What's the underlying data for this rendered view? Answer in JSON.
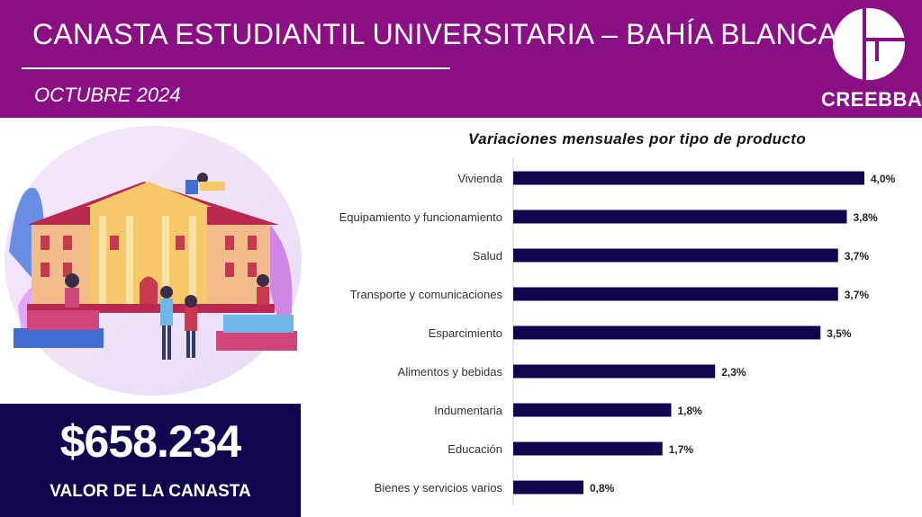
{
  "header": {
    "title": "CANASTA ESTUDIANTIL UNIVERSITARIA – BAHÍA BLANCA",
    "subtitle": "OCTUBRE 2024",
    "logo_text": "CREEBBA"
  },
  "summary": {
    "value": "$658.234",
    "label": "VALOR DE LA CANASTA"
  },
  "colors": {
    "header_bg": "#8b0f84",
    "bar": "#10054f",
    "price_box": "#10054f"
  },
  "chart_data": {
    "type": "bar",
    "orientation": "horizontal",
    "title": "Variaciones mensuales por tipo de producto",
    "categories": [
      "Vivienda",
      "Equipamiento y funcionamiento",
      "Salud",
      "Transporte y comunicaciones",
      "Esparcimiento",
      "Alimentos y bebidas",
      "Indumentaria",
      "Educación",
      "Bienes y servicios varios"
    ],
    "values": [
      4.0,
      3.8,
      3.7,
      3.7,
      3.5,
      2.3,
      1.8,
      1.7,
      0.8
    ],
    "labels": [
      "4,0%",
      "3,8%",
      "3,7%",
      "3,7%",
      "3,5%",
      "2,3%",
      "1,8%",
      "1,7%",
      "0,8%"
    ],
    "xlim": [
      0,
      4.0
    ],
    "grid": false,
    "legend": "none"
  }
}
